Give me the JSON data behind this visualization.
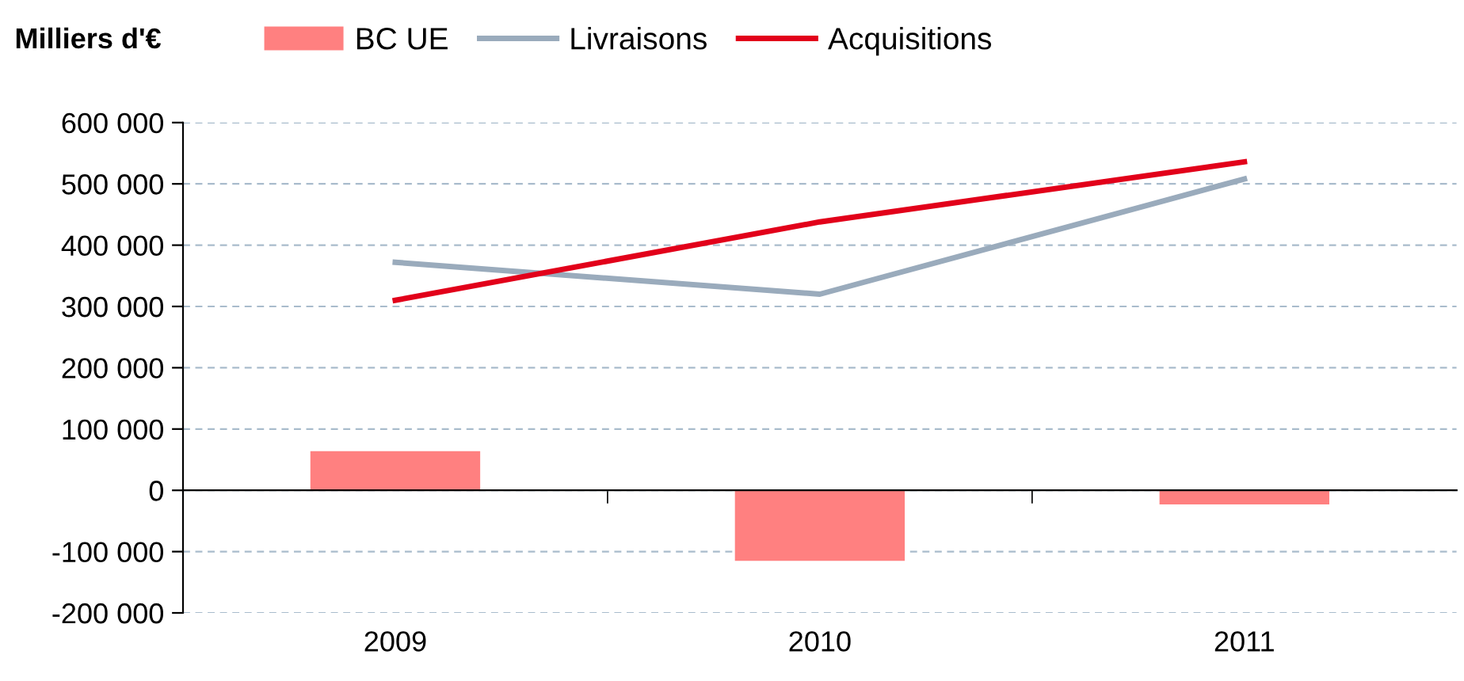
{
  "chart_data": {
    "type": "bar",
    "ylabel": "Milliers d'€",
    "categories": [
      "2009",
      "2010",
      "2011"
    ],
    "series": [
      {
        "name": "BC UE",
        "color": "#ff8080",
        "values": [
          64000,
          -115000,
          -23000
        ]
      },
      {
        "name": "Livraisons",
        "type": "line",
        "color": "#9aabbc",
        "values": [
          372000,
          320000,
          508000
        ]
      },
      {
        "name": "Acquisitions",
        "type": "line",
        "color": "#e2001a",
        "values": [
          310000,
          438000,
          536000
        ]
      }
    ],
    "ylim": [
      -200000,
      600000
    ],
    "yticks": [
      {
        "value": -200000,
        "label": "-200 000"
      },
      {
        "value": -100000,
        "label": "-100 000"
      },
      {
        "value": 0,
        "label": "0"
      },
      {
        "value": 100000,
        "label": "100 000"
      },
      {
        "value": 200000,
        "label": "200 000"
      },
      {
        "value": 300000,
        "label": "300 000"
      },
      {
        "value": 400000,
        "label": "400 000"
      },
      {
        "value": 500000,
        "label": "500 000"
      },
      {
        "value": 600000,
        "label": "600 000"
      }
    ],
    "grid": "y",
    "legend": "top",
    "marker": "none",
    "line_style": "solid"
  }
}
